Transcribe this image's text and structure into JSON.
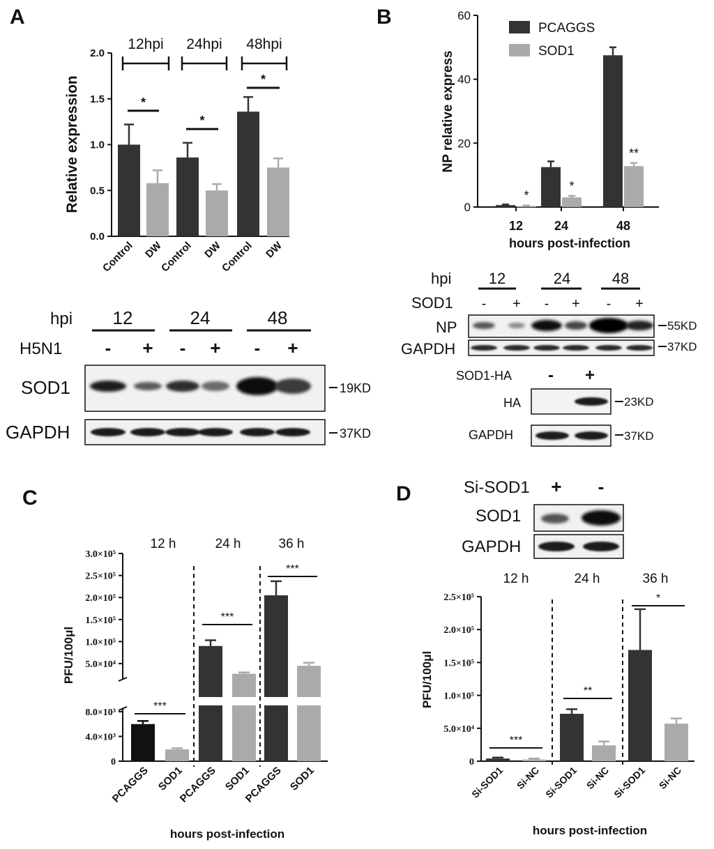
{
  "panels": {
    "A": {
      "letter": "A",
      "time_groups": [
        "12hpi",
        "24hpi",
        "48hpi"
      ],
      "blot": {
        "hpi_label": "hpi",
        "hpi_values": [
          "12",
          "24",
          "48"
        ],
        "treatment_label": "H5N1",
        "signs": [
          "-",
          "+",
          "-",
          "+",
          "-",
          "+"
        ],
        "rows": [
          {
            "label": "SOD1",
            "size": "19KD"
          },
          {
            "label": "GAPDH",
            "size": "37KD"
          }
        ]
      }
    },
    "B": {
      "letter": "B",
      "legend": [
        "PCAGGS",
        "SOD1"
      ],
      "blot": {
        "hpi_label": "hpi",
        "hpi_values": [
          "12",
          "24",
          "48"
        ],
        "treatment_label": "SOD1",
        "signs": [
          "-",
          "+",
          "-",
          "+",
          "-",
          "+"
        ],
        "rows": [
          {
            "label": "NP",
            "size": "55KD"
          },
          {
            "label": "GAPDH",
            "size": "37KD"
          }
        ]
      },
      "blot2": {
        "treatment_label": "SOD1-HA",
        "signs": [
          "-",
          "+"
        ],
        "rows": [
          {
            "label": "HA",
            "size": "23KD"
          },
          {
            "label": "GAPDH",
            "size": "37KD"
          }
        ]
      }
    },
    "C": {
      "letter": "C",
      "time_groups": [
        "12 h",
        "24 h",
        "36 h"
      ]
    },
    "D": {
      "letter": "D",
      "blot": {
        "treatment_label": "Si-SOD1",
        "signs": [
          "+",
          "-"
        ],
        "rows": [
          {
            "label": "SOD1"
          },
          {
            "label": "GAPDH"
          }
        ]
      },
      "time_groups": [
        "12 h",
        "24 h",
        "36 h"
      ]
    }
  },
  "chart_data": [
    {
      "panel": "A",
      "type": "bar",
      "ylabel": "Relative expression",
      "ylim": [
        0,
        2.0
      ],
      "yticks": [
        "0.0",
        "0.5",
        "1.0",
        "1.5",
        "2.0"
      ],
      "categories": [
        "Control",
        "DW",
        "Control",
        "DW",
        "Control",
        "DW"
      ],
      "values": [
        1.0,
        0.58,
        0.86,
        0.5,
        1.36,
        0.75
      ],
      "errors": [
        0.22,
        0.14,
        0.16,
        0.07,
        0.16,
        0.1
      ],
      "colors": [
        "#333333",
        "#aaaaaa",
        "#333333",
        "#aaaaaa",
        "#333333",
        "#aaaaaa"
      ],
      "significance": [
        {
          "between": [
            0,
            1
          ],
          "label": "*",
          "y": 1.37
        },
        {
          "between": [
            2,
            3
          ],
          "label": "*",
          "y": 1.17
        },
        {
          "between": [
            4,
            5
          ],
          "label": "*",
          "y": 1.62
        }
      ]
    },
    {
      "panel": "B",
      "type": "bar",
      "xlabel": "hours post-infection",
      "ylabel": "NP relative express",
      "ylim": [
        0,
        60
      ],
      "yticks": [
        "0",
        "20",
        "40",
        "60"
      ],
      "categories": [
        "12",
        "24",
        "48"
      ],
      "series": [
        {
          "name": "PCAGGS",
          "color": "#333333",
          "values": [
            0.6,
            12.5,
            47.5
          ],
          "errors": [
            0.2,
            1.8,
            2.5
          ]
        },
        {
          "name": "SOD1",
          "color": "#aaaaaa",
          "values": [
            0.3,
            3.0,
            12.8
          ],
          "errors": [
            0.2,
            0.5,
            1.0
          ]
        }
      ],
      "significance": [
        {
          "category": 0,
          "label": "*"
        },
        {
          "category": 1,
          "label": "*"
        },
        {
          "category": 2,
          "label": "**"
        }
      ]
    },
    {
      "panel": "C",
      "type": "bar",
      "xlabel": "hours post-infection",
      "ylabel": "PFU/100μl",
      "axis_break": true,
      "lower_segment": {
        "ylim": [
          0,
          8000
        ],
        "yticks": [
          "0",
          "4.0×10³",
          "8.0×10³"
        ]
      },
      "upper_segment": {
        "ylim": [
          20000,
          300000
        ],
        "yticks": [
          "5.0×10⁴",
          "1.0×10⁵",
          "1.5×10⁵",
          "2.0×10⁵",
          "2.5×10⁵",
          "3.0×10⁵"
        ]
      },
      "categories": [
        "PCAGGS",
        "SOD1",
        "PCAGGS",
        "SOD1",
        "PCAGGS",
        "SOD1"
      ],
      "values": [
        6000,
        1900,
        90000,
        27000,
        205000,
        45000
      ],
      "errors": [
        500,
        200,
        13000,
        3000,
        32000,
        7000
      ],
      "colors": [
        "#111111",
        "#aaaaaa",
        "#333333",
        "#aaaaaa",
        "#333333",
        "#aaaaaa"
      ],
      "significance": [
        {
          "between": [
            0,
            1
          ],
          "label": "***"
        },
        {
          "between": [
            2,
            3
          ],
          "label": "***"
        },
        {
          "between": [
            4,
            5
          ],
          "label": "***"
        }
      ]
    },
    {
      "panel": "D",
      "type": "bar",
      "xlabel": "hours post-infection",
      "ylabel": "PFU/100μl",
      "ylim": [
        0,
        250000
      ],
      "yticks": [
        "0",
        "5.0×10⁴",
        "1.0×10⁵",
        "1.5×10⁵",
        "2.0×10⁵",
        "2.5×10⁵"
      ],
      "categories": [
        "Si-SOD1",
        "Si-NC",
        "Si-SOD1",
        "Si-NC",
        "Si-SOD1",
        "Si-NC"
      ],
      "values": [
        4000,
        2500,
        72000,
        24000,
        169000,
        57000
      ],
      "errors": [
        1500,
        1500,
        7000,
        6000,
        62000,
        8000
      ],
      "colors": [
        "#333333",
        "#aaaaaa",
        "#333333",
        "#aaaaaa",
        "#333333",
        "#aaaaaa"
      ],
      "significance": [
        {
          "between": [
            0,
            1
          ],
          "label": "***"
        },
        {
          "between": [
            2,
            3
          ],
          "label": "**"
        },
        {
          "between": [
            4,
            5
          ],
          "label": "*"
        }
      ]
    }
  ]
}
